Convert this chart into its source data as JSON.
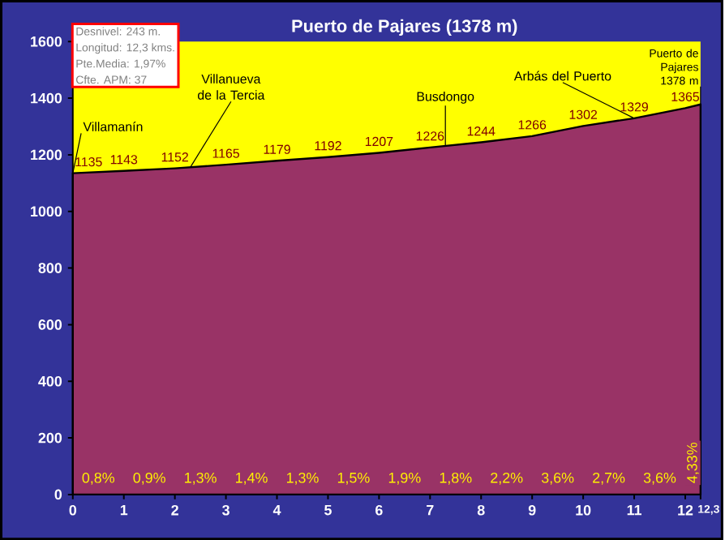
{
  "chart_data": {
    "type": "area",
    "title": "Puerto de Pajares (1378 m)",
    "x": [
      0,
      1,
      2,
      3,
      4,
      5,
      6,
      7,
      8,
      9,
      10,
      11,
      12,
      12.3
    ],
    "series": [
      {
        "color": "#993366",
        "values": [
          1135,
          1143,
          1152,
          1165,
          1179,
          1192,
          1207,
          1226,
          1244,
          1266,
          1302,
          1329,
          1365,
          1378
        ],
        "value_labels": [
          "1135",
          "1143",
          "1152",
          "1165",
          "1179",
          "1192",
          "1207",
          "1226",
          "1244",
          "1266",
          "1302",
          "1329",
          "1365",
          null
        ]
      }
    ],
    "xlim": [
      0,
      12.3
    ],
    "ylim": [
      0,
      1600
    ],
    "xticks": [
      0,
      1,
      2,
      3,
      4,
      5,
      6,
      7,
      8,
      9,
      10,
      11,
      12,
      {
        "value": 12.3,
        "label": "12,3"
      }
    ],
    "yticks": [
      0,
      200,
      400,
      600,
      800,
      1000,
      1200,
      1400,
      1600
    ],
    "annotations": [
      "Desnivel: 243 m.",
      "Longitud: 12,3 kms.",
      "Pte.Media: 1,97%",
      "Cfte. APM: 37",
      {
        "text": "Puerto de Pajares 1378 m",
        "x": 12.3,
        "y": 1378
      },
      {
        "text": "Villamanín",
        "x": 0,
        "y": 1135
      },
      {
        "text": "Villanueva de la Tercia",
        "x": 2.3,
        "y": 1155
      },
      {
        "text": "Busdongo",
        "x": 7.3,
        "y": 1232
      },
      {
        "text": "Arbás del Puerto",
        "x": 11,
        "y": 1329
      },
      "0,8%",
      "0,9%",
      "1,3%",
      "1,4%",
      "1,3%",
      "1,5%",
      "1,9%",
      "1,8%",
      "2,2%",
      "3,6%",
      "2,7%",
      "3,6%",
      "4,33%"
    ]
  }
}
